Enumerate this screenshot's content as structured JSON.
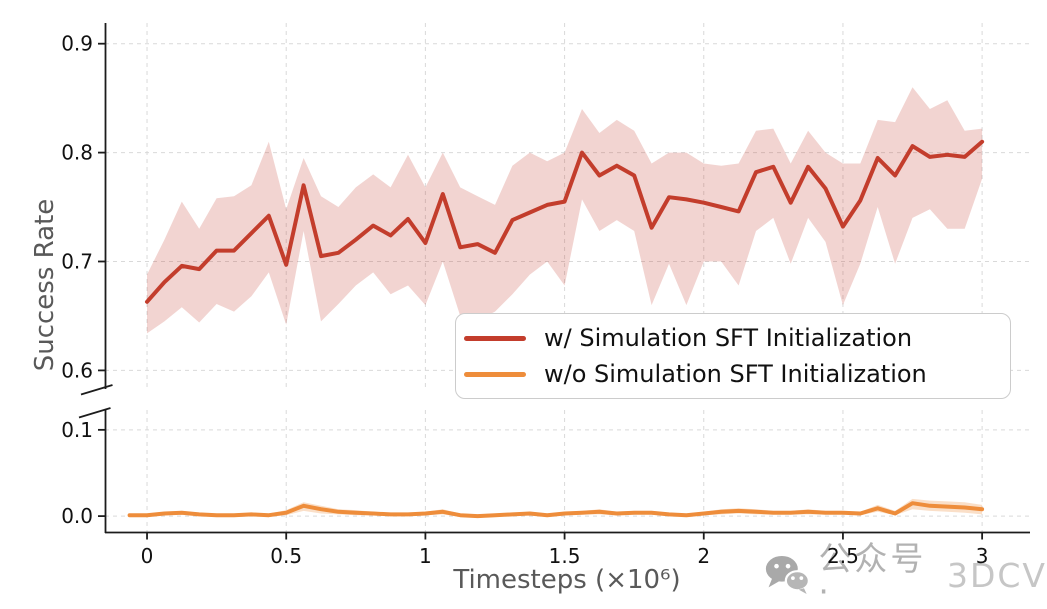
{
  "figure": {
    "background": "#ffffff"
  },
  "watermark": {
    "icon": "wechat-icon",
    "text_cn": "公众号 ·",
    "text_en": "3DCV"
  },
  "chart_data": {
    "type": "line",
    "title": "",
    "xlabel": "Timesteps (×10⁶)",
    "ylabel": "Success Rate",
    "grid": true,
    "grid_style": "dashed",
    "broken_y_axis": true,
    "legend_position": "lower-right of top axes",
    "x_axis": {
      "lim": [
        -0.151,
        3.172
      ],
      "ticks": [
        0,
        0.5,
        1,
        1.5,
        2,
        2.5,
        3
      ],
      "tick_labels": [
        "0",
        "0.5",
        "1",
        "1.5",
        "2",
        "2.5",
        "3"
      ]
    },
    "y_axis_top": {
      "lim": [
        0.582,
        0.919
      ],
      "ticks": [
        0.9,
        0.8,
        0.7,
        0.6
      ],
      "tick_labels": [
        "0.9",
        "0.8",
        "0.7",
        "0.6"
      ]
    },
    "y_axis_bottom": {
      "lim": [
        -0.019,
        0.123
      ],
      "ticks": [
        0.1,
        0.0
      ],
      "tick_labels": [
        "0.1",
        "0.0"
      ]
    },
    "series": [
      {
        "name": "w/ Simulation SFT Initialization",
        "color": "#c33d2c",
        "band_opacity": 0.22,
        "axis": "top",
        "x": [
          0,
          0.0625,
          0.125,
          0.1875,
          0.25,
          0.3125,
          0.375,
          0.4375,
          0.5,
          0.5625,
          0.625,
          0.6875,
          0.75,
          0.8125,
          0.875,
          0.9375,
          1,
          1.0625,
          1.125,
          1.1875,
          1.25,
          1.3125,
          1.375,
          1.4375,
          1.5,
          1.5625,
          1.625,
          1.6875,
          1.75,
          1.8125,
          1.875,
          1.9375,
          2,
          2.0625,
          2.125,
          2.1875,
          2.25,
          2.3125,
          2.375,
          2.4375,
          2.5,
          2.5625,
          2.625,
          2.6875,
          2.75,
          2.8125,
          2.875,
          2.9375,
          3
        ],
        "values": [
          0.663,
          0.681,
          0.696,
          0.693,
          0.71,
          0.71,
          0.726,
          0.742,
          0.697,
          0.77,
          0.705,
          0.708,
          0.72,
          0.733,
          0.724,
          0.739,
          0.717,
          0.762,
          0.713,
          0.716,
          0.708,
          0.738,
          0.745,
          0.752,
          0.755,
          0.8,
          0.779,
          0.788,
          0.779,
          0.731,
          0.759,
          0.757,
          0.754,
          0.75,
          0.746,
          0.782,
          0.787,
          0.754,
          0.787,
          0.767,
          0.732,
          0.756,
          0.795,
          0.779,
          0.806,
          0.796,
          0.798,
          0.796,
          0.81
        ],
        "band_lower": [
          0.634,
          0.645,
          0.658,
          0.644,
          0.661,
          0.654,
          0.668,
          0.69,
          0.642,
          0.728,
          0.645,
          0.661,
          0.678,
          0.69,
          0.67,
          0.678,
          0.66,
          0.7,
          0.65,
          0.646,
          0.654,
          0.67,
          0.688,
          0.7,
          0.678,
          0.757,
          0.728,
          0.738,
          0.728,
          0.66,
          0.698,
          0.66,
          0.7,
          0.7,
          0.678,
          0.728,
          0.74,
          0.698,
          0.74,
          0.718,
          0.66,
          0.698,
          0.75,
          0.698,
          0.74,
          0.748,
          0.73,
          0.73,
          0.776
        ],
        "band_upper": [
          0.688,
          0.72,
          0.755,
          0.73,
          0.758,
          0.76,
          0.77,
          0.81,
          0.748,
          0.795,
          0.76,
          0.75,
          0.768,
          0.78,
          0.768,
          0.798,
          0.768,
          0.8,
          0.768,
          0.76,
          0.752,
          0.788,
          0.8,
          0.792,
          0.8,
          0.84,
          0.818,
          0.83,
          0.82,
          0.79,
          0.8,
          0.8,
          0.79,
          0.788,
          0.79,
          0.82,
          0.822,
          0.79,
          0.82,
          0.8,
          0.79,
          0.79,
          0.83,
          0.828,
          0.86,
          0.84,
          0.848,
          0.82,
          0.822
        ]
      },
      {
        "name": "w/o Simulation SFT Initialization",
        "color": "#ee8d3b",
        "band_opacity": 0.28,
        "axis": "bottom",
        "x": [
          -0.0625,
          0,
          0.0625,
          0.125,
          0.1875,
          0.25,
          0.3125,
          0.375,
          0.4375,
          0.5,
          0.5625,
          0.625,
          0.6875,
          0.75,
          0.8125,
          0.875,
          0.9375,
          1,
          1.0625,
          1.125,
          1.1875,
          1.25,
          1.3125,
          1.375,
          1.4375,
          1.5,
          1.5625,
          1.625,
          1.6875,
          1.75,
          1.8125,
          1.875,
          1.9375,
          2,
          2.0625,
          2.125,
          2.1875,
          2.25,
          2.3125,
          2.375,
          2.4375,
          2.5,
          2.5625,
          2.625,
          2.6875,
          2.75,
          2.8125,
          2.875,
          2.9375,
          3
        ],
        "values": [
          0.001,
          0.001,
          0.003,
          0.004,
          0.002,
          0.001,
          0.001,
          0.002,
          0.001,
          0.004,
          0.012,
          0.008,
          0.005,
          0.004,
          0.003,
          0.002,
          0.002,
          0.003,
          0.005,
          0.001,
          0.0,
          0.001,
          0.002,
          0.003,
          0.001,
          0.003,
          0.004,
          0.005,
          0.003,
          0.004,
          0.004,
          0.002,
          0.001,
          0.003,
          0.005,
          0.006,
          0.005,
          0.004,
          0.004,
          0.005,
          0.004,
          0.004,
          0.003,
          0.009,
          0.003,
          0.015,
          0.012,
          0.011,
          0.01,
          0.008
        ],
        "band_lower": [
          -0.001,
          -0.001,
          0.001,
          0.002,
          0.0,
          -0.001,
          -0.001,
          0.0,
          -0.001,
          0.001,
          0.006,
          0.003,
          0.002,
          0.001,
          0.001,
          0.0,
          0.0,
          0.001,
          0.002,
          -0.001,
          -0.002,
          -0.001,
          0.0,
          0.001,
          -0.001,
          0.001,
          0.002,
          0.002,
          0.001,
          0.002,
          0.002,
          0.0,
          -0.001,
          0.001,
          0.002,
          0.003,
          0.002,
          0.002,
          0.002,
          0.002,
          0.002,
          0.002,
          0.001,
          0.005,
          0.001,
          0.008,
          0.006,
          0.005,
          0.004,
          0.002
        ],
        "band_upper": [
          0.003,
          0.003,
          0.005,
          0.006,
          0.004,
          0.003,
          0.003,
          0.004,
          0.003,
          0.007,
          0.016,
          0.012,
          0.008,
          0.007,
          0.005,
          0.004,
          0.004,
          0.005,
          0.008,
          0.003,
          0.002,
          0.003,
          0.004,
          0.005,
          0.003,
          0.005,
          0.006,
          0.008,
          0.005,
          0.006,
          0.006,
          0.004,
          0.003,
          0.005,
          0.008,
          0.009,
          0.008,
          0.006,
          0.006,
          0.008,
          0.006,
          0.006,
          0.005,
          0.013,
          0.006,
          0.02,
          0.018,
          0.017,
          0.016,
          0.013
        ]
      }
    ],
    "style_colors": {
      "grid": "#d9d9d9",
      "spine": "#1c1c1c",
      "tick_label": "#111111",
      "axis_label": "#595959",
      "legend_border": "#cccccc"
    }
  }
}
